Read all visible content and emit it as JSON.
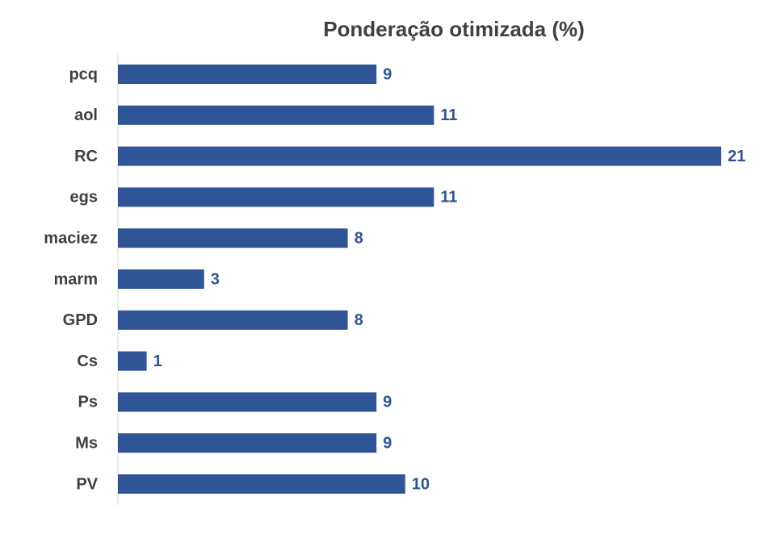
{
  "chart_data": {
    "type": "bar",
    "orientation": "horizontal",
    "title": "Ponderação otimizada (%)",
    "categories": [
      "pcq",
      "aol",
      "RC",
      "egs",
      "maciez",
      "marm",
      "GPD",
      "Cs",
      "Ps",
      "Ms",
      "PV"
    ],
    "values": [
      9,
      11,
      21,
      11,
      8,
      3,
      8,
      1,
      9,
      9,
      10
    ],
    "color": "#2f5597"
  }
}
